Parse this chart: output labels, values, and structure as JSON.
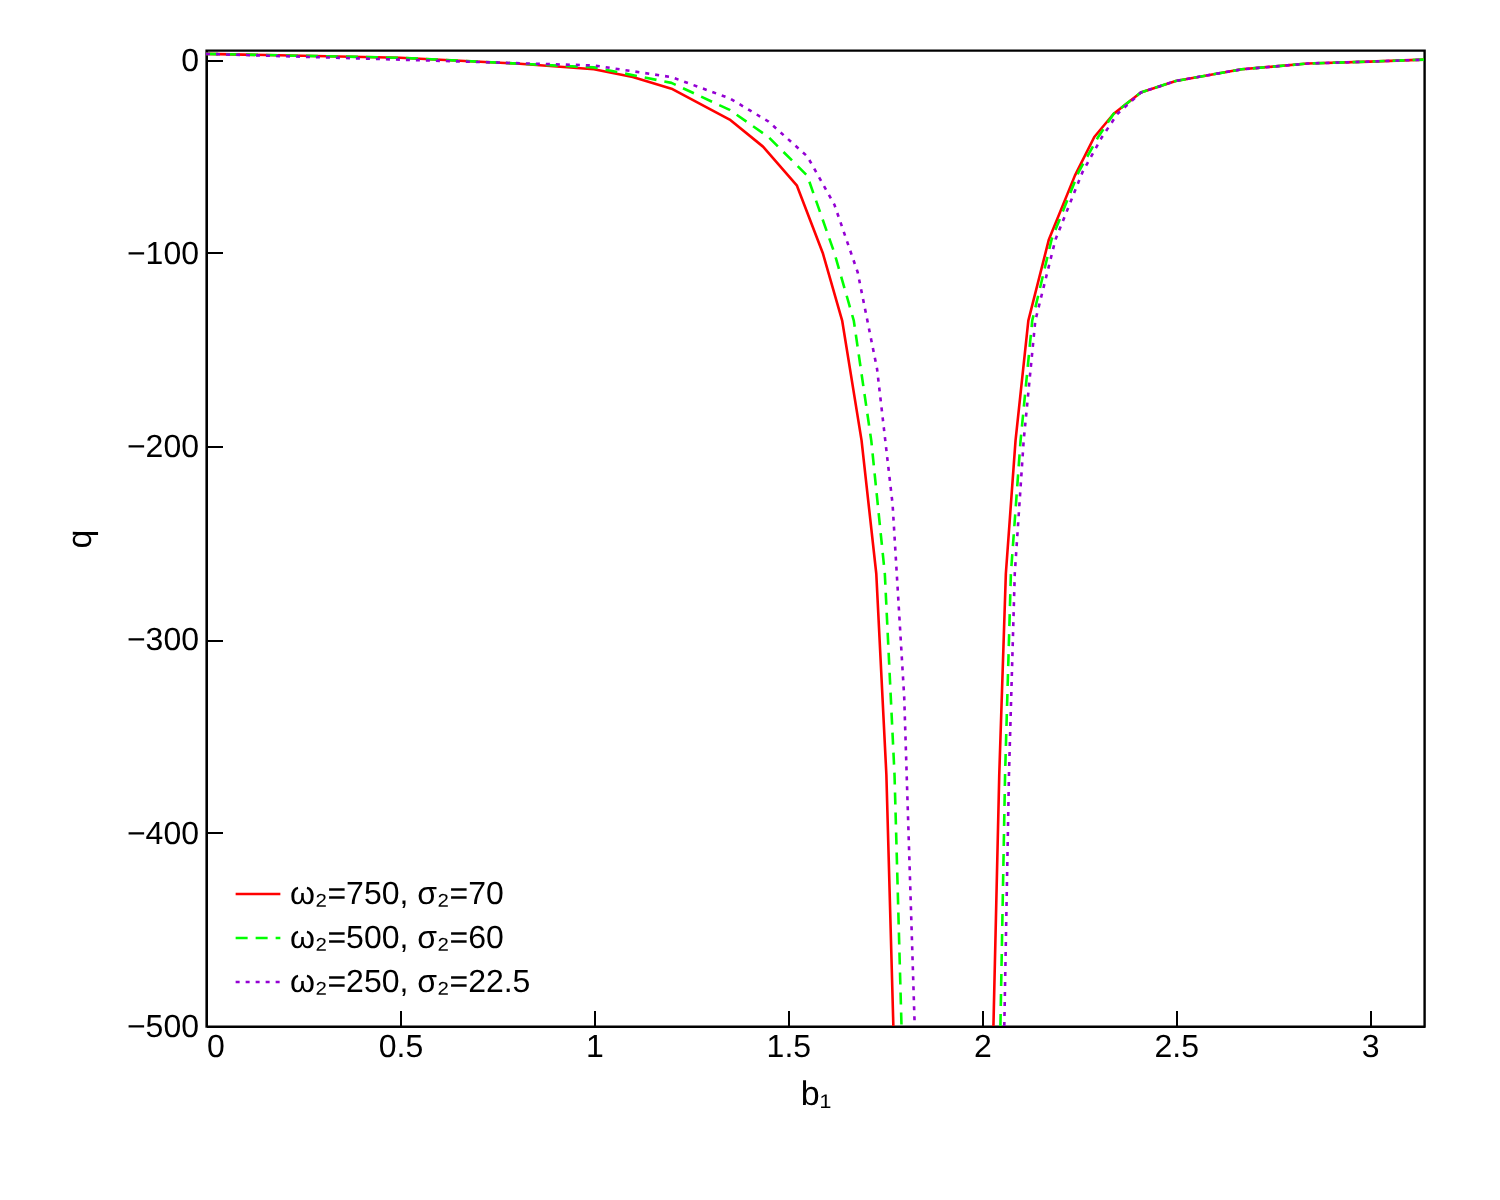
{
  "chart_data": {
    "type": "line",
    "xlabel": "b₁",
    "ylabel": "q",
    "xlim": [
      0,
      3.14
    ],
    "ylim": [
      -500,
      5
    ],
    "xticks": [
      0,
      0.5,
      1,
      1.5,
      2,
      2.5,
      3
    ],
    "yticks": [
      0,
      -100,
      -200,
      -300,
      -400,
      -500
    ],
    "grid": false,
    "legend": "bottom left",
    "series": [
      {
        "name": "ω₂=750,  σ₂=70",
        "color": "#ff0000",
        "line_style": "solid",
        "x": [
          0,
          0.5,
          0.8,
          1.0,
          1.1,
          1.2,
          1.35,
          1.436,
          1.523,
          1.59,
          1.64,
          1.69,
          1.728,
          1.754,
          1.772,
          1.9,
          2.03,
          2.045,
          2.062,
          2.087,
          2.12,
          2.173,
          2.24,
          2.29,
          2.34,
          2.41,
          2.5,
          2.67,
          2.84,
          3.0,
          3.14
        ],
        "values": [
          3,
          1,
          -2,
          -5,
          -9,
          -15,
          -31,
          -45,
          -65,
          -100,
          -135,
          -197,
          -266,
          -370,
          -500,
          null,
          -500,
          -370,
          -266,
          -197,
          -135,
          -93,
          -60,
          -40,
          -28,
          -17,
          -11,
          -5,
          -2,
          -1,
          0
        ]
      },
      {
        "name": "ω₂=500,  σ₂=60",
        "color": "#00ff00",
        "line_style": "dashed",
        "x": [
          0,
          0.5,
          1.0,
          1.2,
          1.35,
          1.45,
          1.55,
          1.62,
          1.67,
          1.715,
          1.75,
          1.775,
          1.793,
          1.9,
          2.048,
          2.06,
          2.075,
          2.1,
          2.13,
          2.18,
          2.25,
          2.3,
          2.34,
          2.41,
          2.5,
          2.67,
          2.84,
          3.0,
          3.14
        ],
        "values": [
          3,
          1,
          -4,
          -12,
          -26,
          -40,
          -60,
          -100,
          -135,
          -197,
          -266,
          -370,
          -500,
          null,
          -500,
          -370,
          -266,
          -197,
          -135,
          -93,
          -58,
          -40,
          -28,
          -17,
          -11,
          -5,
          -2,
          -1,
          0
        ]
      },
      {
        "name": "ω₂=250,  σ₂=22.5",
        "color": "#9400d3",
        "line_style": "dotted",
        "x": [
          0,
          0.5,
          1.0,
          1.2,
          1.35,
          1.45,
          1.55,
          1.62,
          1.68,
          1.73,
          1.77,
          1.8,
          1.827,
          1.9,
          2.058,
          2.07,
          2.085,
          2.108,
          2.138,
          2.19,
          2.26,
          2.31,
          2.35,
          2.41,
          2.5,
          2.67,
          2.84,
          3.0,
          3.14
        ],
        "values": [
          3,
          0,
          -3,
          -9,
          -20,
          -32,
          -50,
          -75,
          -110,
          -160,
          -230,
          -330,
          -500,
          null,
          -500,
          -370,
          -266,
          -197,
          -135,
          -93,
          -58,
          -40,
          -28,
          -17,
          -11,
          -5,
          -2,
          -1,
          0
        ]
      }
    ]
  }
}
